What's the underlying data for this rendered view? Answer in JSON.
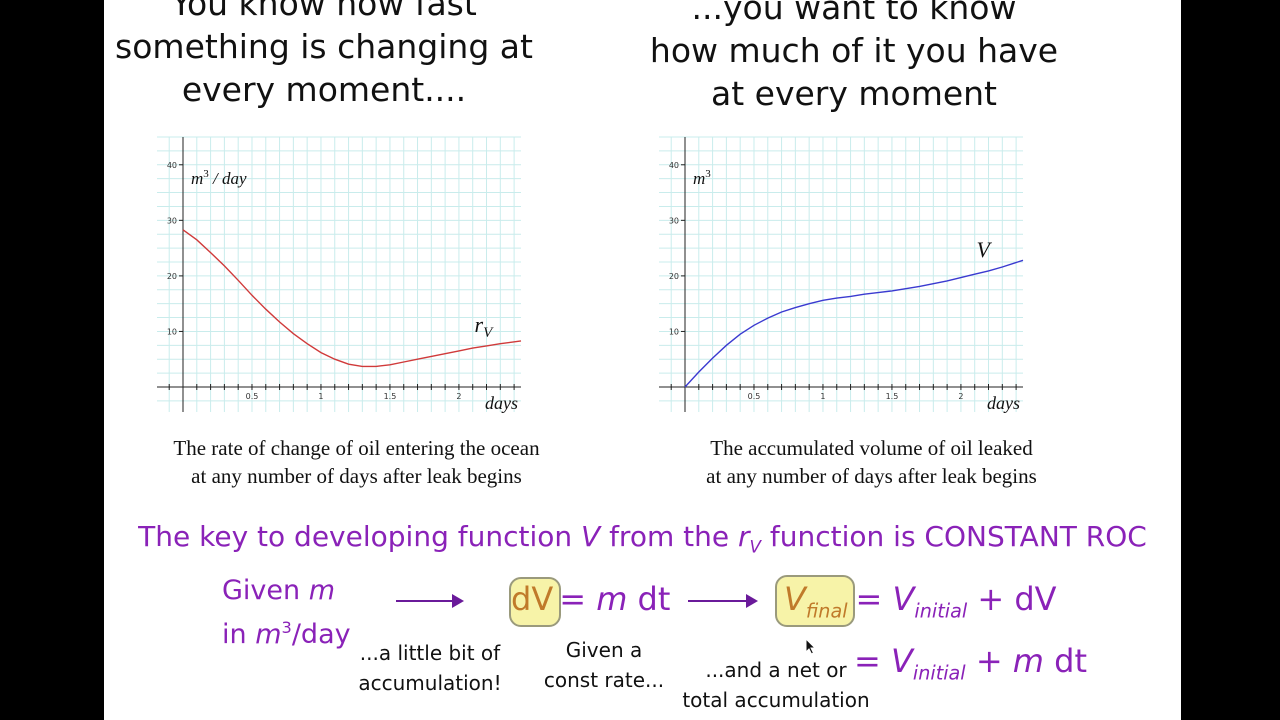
{
  "headings": {
    "left": [
      "You know how fast",
      "something is changing at",
      "every moment...."
    ],
    "right": [
      "...you want to know",
      "how much of it you have",
      "at every moment"
    ]
  },
  "chart_data": [
    {
      "type": "line",
      "x_ticks": [
        0.5,
        1,
        1.5,
        2
      ],
      "y_ticks": [
        10,
        20,
        30,
        40
      ],
      "xlim": [
        0,
        2.45
      ],
      "ylim": [
        -4.5,
        45
      ],
      "grid": true,
      "xlabel": "days",
      "ylabel_main": "m",
      "ylabel_sup": "3",
      "ylabel_rest": " / day",
      "series_label": "r",
      "series_label_sub": "V",
      "color": "#d03a3a",
      "series": [
        {
          "x": [
            0,
            0.1,
            0.2,
            0.3,
            0.4,
            0.5,
            0.6,
            0.7,
            0.8,
            0.9,
            1.0,
            1.1,
            1.2,
            1.3,
            1.4,
            1.5,
            1.6,
            1.7,
            1.8,
            1.9,
            2.0,
            2.1,
            2.2,
            2.3,
            2.45
          ],
          "y": [
            28.3,
            26.5,
            24.2,
            21.8,
            19.2,
            16.5,
            14.0,
            11.7,
            9.6,
            7.8,
            6.2,
            5.0,
            4.1,
            3.7,
            3.7,
            4.0,
            4.5,
            5.0,
            5.5,
            6.0,
            6.5,
            7.0,
            7.4,
            7.8,
            8.3
          ]
        }
      ]
    },
    {
      "type": "line",
      "x_ticks": [
        0.5,
        1,
        1.5,
        2
      ],
      "y_ticks": [
        10,
        20,
        30,
        40
      ],
      "xlim": [
        0,
        2.45
      ],
      "ylim": [
        -4.5,
        45
      ],
      "grid": true,
      "xlabel": "days",
      "ylabel_main": "m",
      "ylabel_sup": "3",
      "ylabel_rest": "",
      "series_label": "V",
      "series_label_sub": "",
      "color": "#3a3ad0",
      "series": [
        {
          "x": [
            0,
            0.1,
            0.2,
            0.3,
            0.4,
            0.5,
            0.6,
            0.7,
            0.8,
            0.9,
            1.0,
            1.1,
            1.2,
            1.3,
            1.4,
            1.5,
            1.6,
            1.7,
            1.8,
            1.9,
            2.0,
            2.1,
            2.2,
            2.3,
            2.45
          ],
          "y": [
            0,
            2.7,
            5.2,
            7.5,
            9.5,
            11.1,
            12.4,
            13.5,
            14.3,
            15.0,
            15.6,
            16.0,
            16.3,
            16.7,
            17.0,
            17.3,
            17.7,
            18.1,
            18.6,
            19.1,
            19.7,
            20.3,
            20.9,
            21.6,
            22.8
          ]
        }
      ]
    }
  ],
  "captions": {
    "left": [
      "The rate of change of oil entering the ocean",
      "at any number of days after leak begins"
    ],
    "right": [
      "The accumulated volume of oil leaked",
      "at any number of days after leak begins"
    ]
  },
  "statement": {
    "p1": "The key to developing function ",
    "v": "V",
    "p2": " from the ",
    "r": "r",
    "r_sub": "V",
    "p3": " function is CONSTANT ROC"
  },
  "equations": {
    "given_label": "Given ",
    "given_m": "m",
    "in_label": "in ",
    "in_m": "m",
    "in_sup": "3",
    "in_rest": "/day",
    "dv": "dV",
    "eq1_rest_a": "= ",
    "eq1_m": "m",
    "eq1_dt": " dt",
    "vfinal_v": "V",
    "vfinal_sub": "final",
    "eq2_a": "= ",
    "eq2_v": "V",
    "eq2_sub": "initial",
    "eq2_b": " + dV",
    "eq3_a": "= ",
    "eq3_v": "V",
    "eq3_sub": "initial",
    "eq3_b": " + ",
    "eq3_m": "m",
    "eq3_dt": " dt"
  },
  "notes": {
    "little_1": "...a little bit of",
    "little_2": "accumulation!",
    "const_1": "Given a",
    "const_2": "const rate...",
    "net_1": "...and a net or",
    "net_2": "total accumulation"
  }
}
